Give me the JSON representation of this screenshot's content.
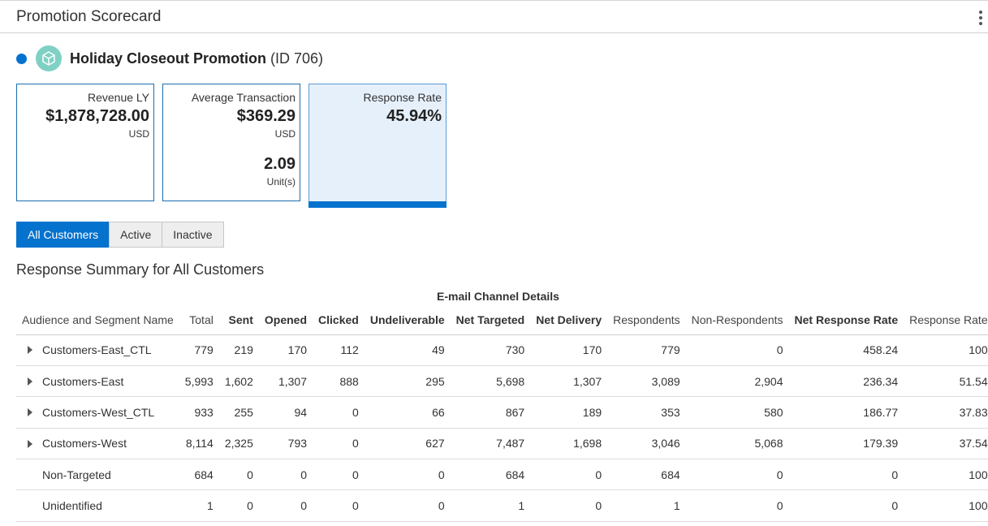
{
  "header": {
    "title": "Promotion Scorecard",
    "menu_icon": "kebab-vertical-icon"
  },
  "promotion": {
    "name": "Holiday Closeout Promotion",
    "id_text": "(ID 706)",
    "status_color": "#0572ce",
    "icon": "cube-icon",
    "icon_bg": "#7fd1c4"
  },
  "cards": [
    {
      "label": "Revenue LY",
      "value": "$1,878,728.00",
      "unit": "USD"
    },
    {
      "label": "Average Transaction",
      "value": "$369.29",
      "unit": "USD",
      "value2": "2.09",
      "unit2": "Unit(s)"
    },
    {
      "label": "Response Rate",
      "value": "45.94%",
      "selected": true
    }
  ],
  "toggles": [
    {
      "label": "All Customers",
      "active": true
    },
    {
      "label": "Active",
      "active": false
    },
    {
      "label": "Inactive",
      "active": false
    }
  ],
  "section_title": "Response Summary for All Customers",
  "table": {
    "group_header": "E-mail Channel Details",
    "columns": [
      "Audience and Segment Name",
      "Total",
      "Sent",
      "Opened",
      "Clicked",
      "Undeliverable",
      "Net Targeted",
      "Net Delivery",
      "Respondents",
      "Non-Respondents",
      "Net Response Rate",
      "Response Rate"
    ],
    "rows": [
      {
        "expandable": true,
        "cells": [
          "Customers-East_CTL",
          "779",
          "219",
          "170",
          "112",
          "49",
          "730",
          "170",
          "779",
          "0",
          "458.24",
          "100"
        ]
      },
      {
        "expandable": true,
        "cells": [
          "Customers-East",
          "5,993",
          "1,602",
          "1,307",
          "888",
          "295",
          "5,698",
          "1,307",
          "3,089",
          "2,904",
          "236.34",
          "51.54"
        ]
      },
      {
        "expandable": true,
        "cells": [
          "Customers-West_CTL",
          "933",
          "255",
          "94",
          "0",
          "66",
          "867",
          "189",
          "353",
          "580",
          "186.77",
          "37.83"
        ]
      },
      {
        "expandable": true,
        "cells": [
          "Customers-West",
          "8,114",
          "2,325",
          "793",
          "0",
          "627",
          "7,487",
          "1,698",
          "3,046",
          "5,068",
          "179.39",
          "37.54"
        ]
      },
      {
        "expandable": false,
        "cells": [
          "Non-Targeted",
          "684",
          "0",
          "0",
          "0",
          "0",
          "684",
          "0",
          "684",
          "0",
          "0",
          "100"
        ]
      },
      {
        "expandable": false,
        "cells": [
          "Unidentified",
          "1",
          "0",
          "0",
          "0",
          "0",
          "1",
          "0",
          "1",
          "0",
          "0",
          "100"
        ]
      }
    ]
  }
}
